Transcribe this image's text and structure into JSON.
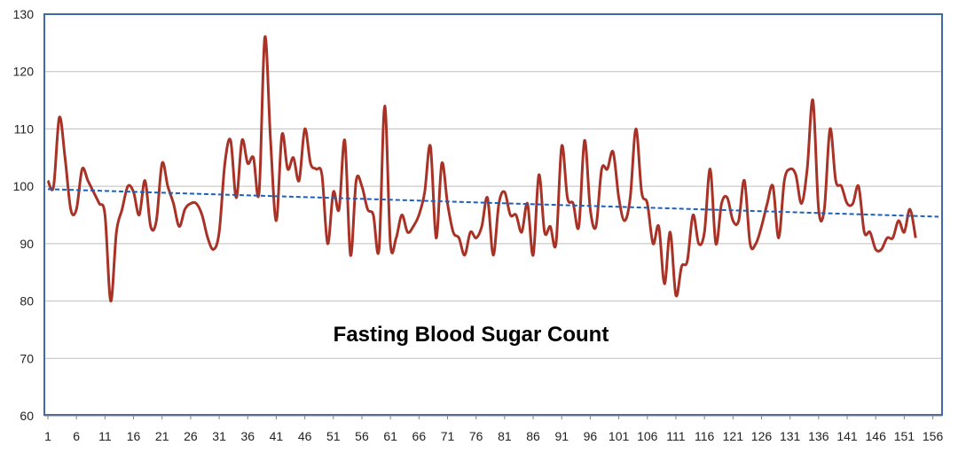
{
  "chart_data": {
    "type": "line",
    "title": "Fasting Blood Sugar Count",
    "xlabel": "",
    "ylabel": "",
    "ylim": [
      60,
      130
    ],
    "yticks": [
      60,
      70,
      80,
      90,
      100,
      110,
      120,
      130
    ],
    "xlim": [
      1,
      157
    ],
    "xticks": [
      1,
      6,
      11,
      16,
      21,
      26,
      31,
      36,
      41,
      46,
      51,
      56,
      61,
      66,
      71,
      76,
      81,
      86,
      91,
      96,
      101,
      106,
      111,
      116,
      121,
      126,
      131,
      136,
      141,
      146,
      151,
      156
    ],
    "grid": true,
    "legend": "none",
    "series": [
      {
        "name": "Fasting blood sugar",
        "color": "#a93226",
        "values": [
          101,
          100,
          112,
          105,
          96,
          96,
          103,
          101,
          99,
          97,
          95,
          80,
          92,
          96,
          100,
          99,
          95,
          101,
          93,
          94,
          104,
          100,
          97,
          93,
          96,
          97,
          97,
          95,
          91,
          89,
          92,
          104,
          108,
          98,
          108,
          104,
          105,
          99,
          126,
          108,
          94,
          109,
          103,
          105,
          101,
          110,
          104,
          103,
          102,
          90,
          99,
          96,
          108,
          88,
          101,
          100,
          96,
          95,
          89,
          114,
          90,
          91,
          95,
          92,
          93,
          95,
          99,
          107,
          91,
          104,
          97,
          92,
          91,
          88,
          92,
          91,
          93,
          98,
          88,
          97,
          99,
          95,
          95,
          92,
          97,
          88,
          102,
          92,
          93,
          90,
          107,
          98,
          97,
          93,
          108,
          96,
          93,
          103,
          103,
          106,
          98,
          94,
          98,
          110,
          99,
          97,
          90,
          93,
          83,
          92,
          81,
          86,
          87,
          95,
          90,
          92,
          103,
          90,
          97,
          98,
          94,
          94,
          101,
          90,
          90,
          93,
          97,
          100,
          91,
          101,
          103,
          102,
          97,
          103,
          115,
          96,
          96,
          110,
          101,
          100,
          97,
          97,
          100,
          92,
          92,
          89,
          89,
          91,
          91,
          94,
          92,
          96,
          91
        ]
      },
      {
        "name": "Linear trend",
        "color": "#1f5fb5",
        "values": [
          99.5,
          94.7
        ],
        "x": [
          1,
          157
        ]
      }
    ]
  }
}
